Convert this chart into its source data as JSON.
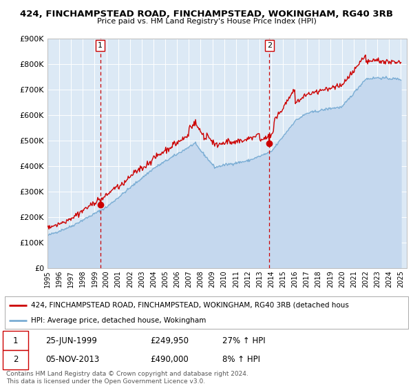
{
  "title": "424, FINCHAMPSTEAD ROAD, FINCHAMPSTEAD, WOKINGHAM, RG40 3RB",
  "subtitle": "Price paid vs. HM Land Registry's House Price Index (HPI)",
  "ylim": [
    0,
    900000
  ],
  "yticks": [
    0,
    100000,
    200000,
    300000,
    400000,
    500000,
    600000,
    700000,
    800000,
    900000
  ],
  "ytick_labels": [
    "£0",
    "£100K",
    "£200K",
    "£300K",
    "£400K",
    "£500K",
    "£600K",
    "£700K",
    "£800K",
    "£900K"
  ],
  "xlim_start": 1995.0,
  "xlim_end": 2025.5,
  "background_color": "#ffffff",
  "plot_bg_color": "#dce9f5",
  "grid_color": "#ffffff",
  "red_line_color": "#cc0000",
  "blue_line_color": "#7aadd4",
  "blue_fill_color": "#c5d8ee",
  "marker1_x": 1999.486,
  "marker1_y": 249950,
  "marker2_x": 2013.843,
  "marker2_y": 490000,
  "vline1_x": 1999.486,
  "vline2_x": 2013.843,
  "legend_line1": "424, FINCHAMPSTEAD ROAD, FINCHAMPSTEAD, WOKINGHAM, RG40 3RB (detached hous",
  "legend_line2": "HPI: Average price, detached house, Wokingham",
  "table_row1_label": "1",
  "table_row1_date": "25-JUN-1999",
  "table_row1_price": "£249,950",
  "table_row1_hpi": "27% ↑ HPI",
  "table_row2_label": "2",
  "table_row2_date": "05-NOV-2013",
  "table_row2_price": "£490,000",
  "table_row2_hpi": "8% ↑ HPI",
  "footnote1": "Contains HM Land Registry data © Crown copyright and database right 2024.",
  "footnote2": "This data is licensed under the Open Government Licence v3.0."
}
